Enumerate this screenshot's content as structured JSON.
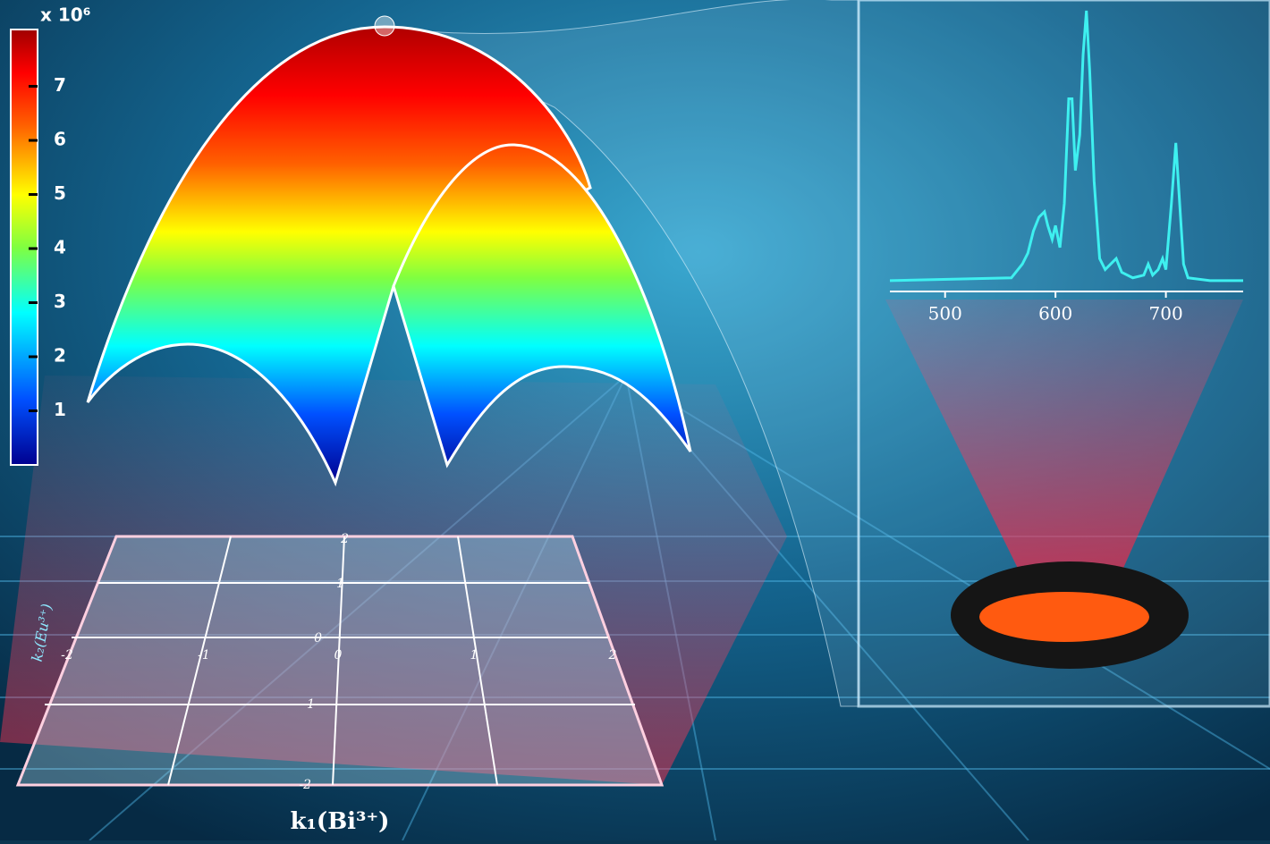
{
  "colorbar": {
    "multiplier": "x 10⁶",
    "range": [
      0,
      8.05
    ],
    "ticks": [
      1,
      2,
      3,
      4,
      5,
      6,
      7
    ]
  },
  "spectrum": {
    "type": "line",
    "color": "#3ef0f0",
    "xlim": [
      450,
      770
    ],
    "xticks": [
      500,
      600,
      700
    ],
    "ylim": [
      0,
      100
    ],
    "x": [
      450,
      560,
      570,
      575,
      580,
      585,
      590,
      593,
      597,
      600,
      604,
      608,
      612,
      615,
      618,
      622,
      625,
      628,
      631,
      635,
      640,
      645,
      650,
      655,
      660,
      670,
      680,
      684,
      688,
      693,
      697,
      700,
      705,
      709,
      712,
      716,
      720,
      740,
      770
    ],
    "values": [
      2,
      3,
      8,
      12,
      20,
      25,
      27,
      22,
      17,
      22,
      14,
      30,
      68,
      68,
      42,
      55,
      84,
      100,
      78,
      38,
      10,
      6,
      8,
      10,
      5,
      3,
      4,
      8,
      4,
      6,
      10,
      6,
      30,
      52,
      33,
      8,
      3,
      2,
      2
    ]
  },
  "plane": {
    "x_label": "k₁(Bi³⁺)",
    "y_label": "k₂(Eu³⁺)",
    "x_ticks": [
      -2,
      -1,
      0,
      1,
      2
    ],
    "y_ticks": [
      2,
      1,
      0,
      -1,
      -2
    ]
  }
}
